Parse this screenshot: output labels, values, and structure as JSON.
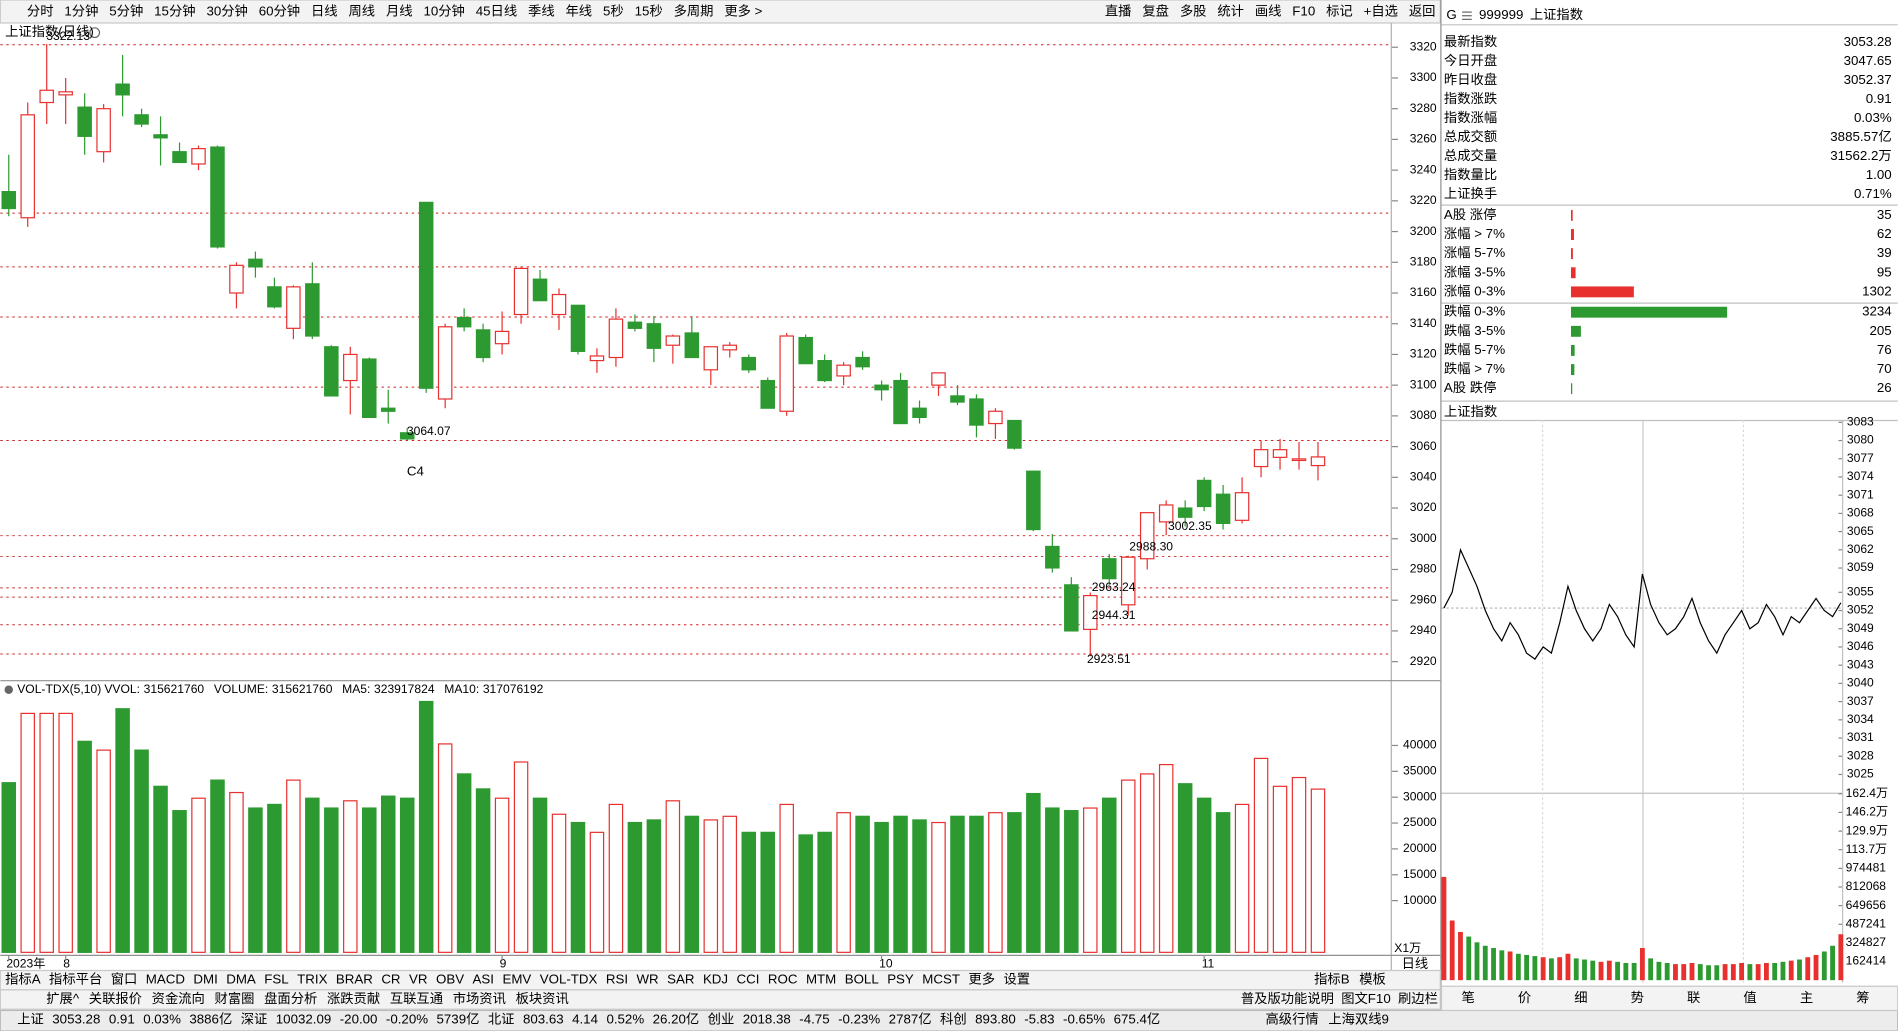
{
  "toolbar": {
    "periods": [
      "分时",
      "1分钟",
      "5分钟",
      "15分钟",
      "30分钟",
      "60分钟",
      "日线",
      "周线",
      "月线",
      "10分钟",
      "45日线",
      "季线",
      "年线",
      "5秒",
      "15秒",
      "多周期",
      "更多 >"
    ],
    "tools": [
      "直播",
      "复盘",
      "多股",
      "统计",
      "画线",
      "F10",
      "标记",
      "+自选",
      "返回"
    ]
  },
  "chart_data": [
    {
      "type": "candlestick",
      "title": "上证指数(日线)",
      "categories": [
        "2023年",
        null,
        null,
        "8",
        null,
        null,
        null,
        null,
        null,
        null,
        null,
        null,
        null,
        null,
        null,
        null,
        null,
        null,
        null,
        null,
        null,
        null,
        null,
        null,
        null,
        null,
        "9",
        null,
        null,
        null,
        null,
        null,
        null,
        null,
        null,
        null,
        null,
        null,
        null,
        null,
        null,
        null,
        null,
        null,
        null,
        null,
        "10",
        null,
        null,
        null,
        null,
        null,
        null,
        null,
        null,
        null,
        null,
        null,
        null,
        null,
        null,
        null,
        null,
        "11",
        null,
        null,
        null,
        null,
        null,
        null
      ],
      "open": [
        3226,
        3209,
        3284,
        3289,
        3281,
        3252,
        3296,
        3276,
        3263,
        3252,
        3244,
        3255,
        3160,
        3182,
        3164,
        3137,
        3166,
        3125,
        3103,
        3117,
        3085,
        3069,
        3219,
        3091,
        3144,
        3136,
        3127,
        3146,
        3169,
        3146,
        3152,
        3116,
        3118,
        3141,
        3140,
        3126,
        3134,
        3110,
        3123,
        3118,
        3103,
        3083,
        3131,
        3116,
        3106,
        3118,
        3100,
        3103,
        3085,
        3100,
        3093,
        3091,
        3075,
        3077,
        3044,
        2995,
        2970,
        2941,
        2987,
        2957,
        2987,
        3011,
        3020,
        3038,
        3029,
        3012,
        3047,
        3053,
        3051,
        3047.65
      ],
      "high": [
        3250,
        3284,
        3322.13,
        3300,
        3290,
        3283,
        3315,
        3280,
        3275,
        3258,
        3256,
        3256,
        3180,
        3187,
        3170,
        3165,
        3180,
        3126,
        3125,
        3118,
        3097,
        3072,
        3219,
        3140,
        3150,
        3140,
        3148,
        3177,
        3175,
        3163,
        3152,
        3124,
        3150,
        3146,
        3145,
        3133,
        3145,
        3125,
        3128,
        3120,
        3105,
        3134,
        3133,
        3120,
        3115,
        3122,
        3103,
        3108,
        3090,
        3108,
        3100,
        3094,
        3085,
        3077,
        3044,
        3003,
        2975,
        2965,
        2990,
        2989,
        3017,
        3025,
        3025,
        3040,
        3035,
        3040,
        3064,
        3065,
        3063,
        3063
      ],
      "low": [
        3210,
        3203,
        3270,
        3270,
        3250,
        3245,
        3275,
        3268,
        3243,
        3245,
        3240,
        3189,
        3150,
        3170,
        3150,
        3130,
        3130,
        3093,
        3081,
        3079,
        3075,
        3064.07,
        3095,
        3085,
        3135,
        3115,
        3120,
        3140,
        3155,
        3136,
        3120,
        3108,
        3112,
        3135,
        3115,
        3114,
        3118,
        3100,
        3118,
        3108,
        3085,
        3080,
        3114,
        3102,
        3100,
        3110,
        3090,
        3075,
        3075,
        3093,
        3087,
        3066,
        3065,
        3058,
        3005,
        2978,
        2940,
        2923.51,
        2970,
        2950,
        2980,
        3002.35,
        3008,
        3018,
        3006,
        3010,
        3040,
        3045,
        3045,
        3038
      ],
      "close": [
        3215,
        3276,
        3292,
        3291,
        3262,
        3280,
        3289,
        3270,
        3261,
        3245,
        3254,
        3190,
        3178,
        3177,
        3151,
        3164,
        3132,
        3093,
        3120,
        3079,
        3083,
        3065,
        3098,
        3138,
        3138,
        3118,
        3135,
        3176,
        3155,
        3159,
        3122,
        3119,
        3143,
        3137,
        3124,
        3132,
        3118,
        3125,
        3126,
        3110,
        3085,
        3132,
        3114,
        3103,
        3113,
        3112,
        3097,
        3075,
        3079,
        3108,
        3089,
        3074,
        3083,
        3059,
        3006,
        2981,
        2940,
        2963,
        2974,
        2988,
        3017,
        3022,
        3014,
        3021,
        3010,
        3030,
        3058,
        3058,
        3052,
        3053.28
      ],
      "up_color": "#e8312f",
      "down_color": "#2d9a31",
      "ylim": [
        2908,
        3335
      ],
      "yticks": [
        3320,
        3300,
        3280,
        3260,
        3240,
        3220,
        3200,
        3180,
        3160,
        3140,
        3120,
        3100,
        3080,
        3060,
        3040,
        3020,
        3000,
        2980,
        2960,
        2940,
        2920
      ],
      "reference_lines": [
        3321.6,
        3212,
        3177,
        3144.4,
        3098.7,
        3064,
        3002,
        2988.5,
        2968,
        2962,
        2944,
        2925
      ],
      "reference_color": "#d02020",
      "annotations": [
        3322.13,
        3064.07,
        3002.35,
        {
          "value": 2988.3,
          "label": "2988.30"
        },
        2963.24,
        2944.31,
        2923.51
      ],
      "marker_text": "C4"
    },
    {
      "type": "bar",
      "title": "VOL-TDX(5,10)",
      "legend": [
        {
          "label": "VVOL:",
          "value": 315621760,
          "color": "#000000"
        },
        {
          "label": "VOLUME:",
          "value": 315621760,
          "color": "#2060c0"
        },
        {
          "label": "MA5:",
          "value": 323917824,
          "color": "#2060c0"
        },
        {
          "label": "MA10:",
          "value": 317076192,
          "color": "#8a2a8a"
        }
      ],
      "values": [
        32800,
        46200,
        46200,
        46200,
        40800,
        39100,
        47100,
        39100,
        32100,
        27400,
        29800,
        33300,
        30900,
        27900,
        28600,
        33300,
        29800,
        27900,
        29300,
        27900,
        30200,
        29800,
        48500,
        40300,
        34500,
        31600,
        29800,
        36800,
        29800,
        26700,
        25100,
        23200,
        28600,
        25100,
        25600,
        29300,
        26300,
        25600,
        26300,
        23200,
        23200,
        28600,
        22700,
        23200,
        27000,
        26300,
        25100,
        26300,
        25600,
        25100,
        26300,
        26300,
        27000,
        27000,
        30700,
        27900,
        27400,
        27900,
        29800,
        33300,
        34500,
        36300,
        32600,
        29800,
        27000,
        28600,
        37500,
        32100,
        33800,
        31562
      ],
      "ylim": [
        0,
        48900
      ],
      "yticks": [
        40000,
        35000,
        30000,
        25000,
        20000,
        15000,
        10000
      ],
      "unit": "X1万"
    },
    {
      "type": "line",
      "title": "上证指数",
      "values": [
        3052.4,
        3055,
        3062,
        3059,
        3056,
        3052,
        3049,
        3047,
        3050,
        3048,
        3045,
        3044,
        3046,
        3045,
        3050,
        3056,
        3052,
        3049,
        3047,
        3049,
        3053,
        3051,
        3048,
        3046,
        3058,
        3053,
        3050,
        3048,
        3049,
        3051,
        3054,
        3050,
        3047,
        3045,
        3048,
        3050,
        3052,
        3049,
        3050,
        3053,
        3051,
        3048,
        3051,
        3050,
        3052,
        3054,
        3052,
        3051,
        3053.28
      ],
      "color": "#000000",
      "ylim": [
        3025,
        3083
      ],
      "yticks": [
        3083,
        3080,
        3077,
        3074,
        3071,
        3068,
        3065,
        3062,
        3059,
        3055,
        3052,
        3049,
        3046,
        3043,
        3040,
        3037,
        3034,
        3031,
        3028,
        3025
      ],
      "volume": [
        900000,
        520000,
        420000,
        380000,
        330000,
        300000,
        280000,
        260000,
        250000,
        230000,
        220000,
        210000,
        200000,
        190000,
        200000,
        230000,
        190000,
        180000,
        170000,
        160000,
        170000,
        160000,
        150000,
        150000,
        280000,
        190000,
        160000,
        150000,
        140000,
        140000,
        150000,
        140000,
        130000,
        130000,
        140000,
        140000,
        150000,
        140000,
        140000,
        150000,
        150000,
        160000,
        170000,
        180000,
        200000,
        220000,
        250000,
        300000,
        400000
      ],
      "volume_ylim": [
        0,
        1624000
      ],
      "volume_yticks": [
        {
          "value": 1624000,
          "label": "162.4万"
        },
        {
          "value": 1462000,
          "label": "146.2万"
        },
        {
          "value": 1299000,
          "label": "129.9万"
        },
        {
          "value": 1137000,
          "label": "113.7万"
        },
        974481,
        812068,
        649656,
        487241,
        324827,
        162414
      ]
    }
  ],
  "quote": {
    "badge": "G",
    "code": "999999",
    "name": "上证指数",
    "rows": [
      {
        "label": "最新指数",
        "value": "3053.28",
        "color": "#e8312f"
      },
      {
        "label": "今日开盘",
        "value": "3047.65",
        "color": "#e8312f"
      },
      {
        "label": "昨日收盘",
        "value": "3052.37",
        "color": "#000000"
      },
      {
        "label": "指数涨跌",
        "value": "0.91",
        "color": "#e8312f"
      },
      {
        "label": "指数涨幅",
        "value": "0.03%",
        "color": "#e8312f"
      },
      {
        "label": "总成交额",
        "value": "3885.57亿",
        "color": "#000000"
      },
      {
        "label": "总成交量",
        "value": "31562.2万",
        "color": "#000000"
      },
      {
        "label": "指数量比",
        "value": "1.00",
        "color": "#000000"
      },
      {
        "label": "上证换手",
        "value": "0.71%",
        "color": "#000000"
      }
    ]
  },
  "breadth": {
    "up_color": "#e8312f",
    "down_color": "#2d9a31",
    "up": [
      {
        "label": "A股 涨停",
        "count": 35
      },
      {
        "label": "涨幅 > 7%",
        "count": 62
      },
      {
        "label": "涨幅 5-7%",
        "count": 39
      },
      {
        "label": "涨幅 3-5%",
        "count": 95
      },
      {
        "label": "涨幅 0-3%",
        "count": 1302
      }
    ],
    "down": [
      {
        "label": "跌幅 0-3%",
        "count": 3234
      },
      {
        "label": "跌幅 3-5%",
        "count": 205
      },
      {
        "label": "跌幅 5-7%",
        "count": 76
      },
      {
        "label": "跌幅 > 7%",
        "count": 70
      },
      {
        "label": "A股 跌停",
        "count": 26
      }
    ]
  },
  "side_tabs": [
    "笔",
    "价",
    "细",
    "势",
    "联",
    "值",
    "主",
    "筹"
  ],
  "indicator_tabs": [
    "指标A",
    "指标平台",
    "窗口",
    "MACD",
    "DMI",
    "DMA",
    "FSL",
    "TRIX",
    "BRAR",
    "CR",
    "VR",
    "OBV",
    "ASI",
    "EMV",
    "VOL-TDX",
    "RSI",
    "WR",
    "SAR",
    "KDJ",
    "CCI",
    "ROC",
    "MTM",
    "BOLL",
    "PSY",
    "MCST",
    "更多",
    "设置"
  ],
  "indicator_right": [
    "指标B",
    "模板"
  ],
  "axis_corner": "日线",
  "info_tabs": [
    {
      "text": "扩展^",
      "color": "#000000"
    },
    {
      "text": "关联报价",
      "color": "#000000"
    },
    {
      "text": "资金流向",
      "color": "#000000"
    },
    {
      "text": "财富圈",
      "color": "#e8312f"
    },
    {
      "text": "盘面分析",
      "color": "#000000"
    },
    {
      "text": "涨跌贡献",
      "color": "#e8312f"
    },
    {
      "text": "互联互通",
      "color": "#e8312f"
    },
    {
      "text": "市场资讯",
      "color": "#000000"
    },
    {
      "text": "板块资讯",
      "color": "#000000"
    }
  ],
  "info_right": [
    "普及版功能说明",
    "图文F10",
    "刷边栏"
  ],
  "status_bar": [
    {
      "text": "上证",
      "color": "#000000"
    },
    {
      "text": "3053.28",
      "color": "#e8312f"
    },
    {
      "text": "0.91",
      "color": "#e8312f"
    },
    {
      "text": "0.03%",
      "color": "#e8312f"
    },
    {
      "text": "3886亿",
      "color": "#000000"
    },
    {
      "text": "深证",
      "color": "#000000"
    },
    {
      "text": "10032.09",
      "color": "#2d9a31"
    },
    {
      "text": "-20.00",
      "color": "#2d9a31"
    },
    {
      "text": "-0.20%",
      "color": "#2d9a31"
    },
    {
      "text": "5739亿",
      "color": "#000000"
    },
    {
      "text": "北证",
      "color": "#000000"
    },
    {
      "text": "803.63",
      "color": "#e8312f"
    },
    {
      "text": "4.14",
      "color": "#e8312f"
    },
    {
      "text": "0.52%",
      "color": "#e8312f"
    },
    {
      "text": "26.20亿",
      "color": "#000000"
    },
    {
      "text": "创业",
      "color": "#000000"
    },
    {
      "text": "2018.38",
      "color": "#2d9a31"
    },
    {
      "text": "-4.75",
      "color": "#2d9a31"
    },
    {
      "text": "-0.23%",
      "color": "#2d9a31"
    },
    {
      "text": "2787亿",
      "color": "#000000"
    },
    {
      "text": "科创",
      "color": "#000000"
    },
    {
      "text": "893.80",
      "color": "#2d9a31"
    },
    {
      "text": "-5.83",
      "color": "#2d9a31"
    },
    {
      "text": "-0.65%",
      "color": "#2d9a31"
    },
    {
      "text": "675.4亿",
      "color": "#000000"
    }
  ],
  "status_right": [
    "高级行情",
    "上海双线9"
  ]
}
